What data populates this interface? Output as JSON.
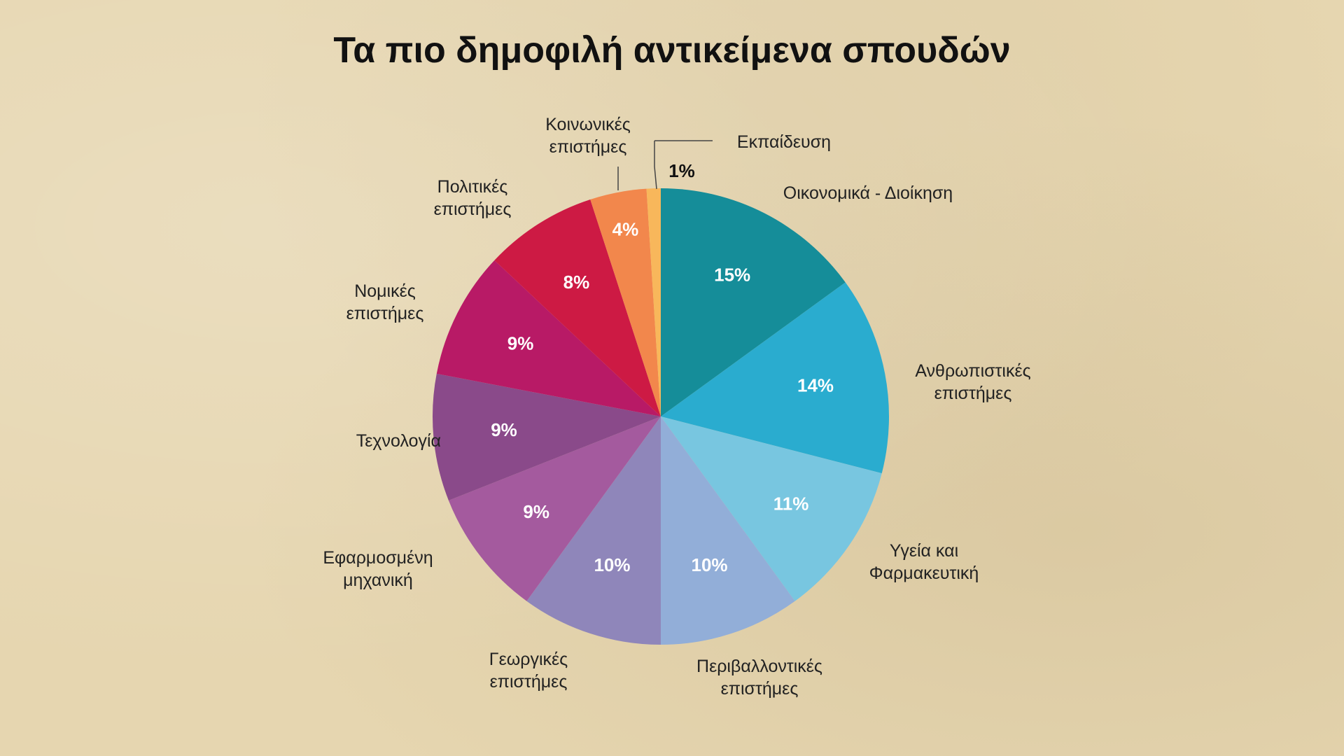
{
  "chart_data": {
    "type": "pie",
    "title": "Τα πιο δημοφιλή αντικείμενα σπουδών",
    "slices": [
      {
        "name": "Οικονομικά - Διοίκηση",
        "value": 15,
        "label": "15%",
        "color": "#158d99"
      },
      {
        "name": "Ανθρωπιστικές επιστήμες",
        "value": 14,
        "label": "14%",
        "color": "#2aaccf"
      },
      {
        "name": "Υγεία και Φαρμακευτική",
        "value": 11,
        "label": "11%",
        "color": "#78c6e0"
      },
      {
        "name": "Περιβαλλοντικές επιστήμες",
        "value": 10,
        "label": "10%",
        "color": "#92aed8"
      },
      {
        "name": "Γεωργικές επιστήμες",
        "value": 10,
        "label": "10%",
        "color": "#8f86ba"
      },
      {
        "name": "Εφαρμοσμένη μηχανική",
        "value": 9,
        "label": "9%",
        "color": "#a45a9e"
      },
      {
        "name": "Τεχνολογία",
        "value": 9,
        "label": "9%",
        "color": "#8a4a8a"
      },
      {
        "name": "Νομικές επιστήμες",
        "value": 9,
        "label": "9%",
        "color": "#b81a66"
      },
      {
        "name": "Πολιτικές επιστήμες",
        "value": 8,
        "label": "8%",
        "color": "#cd1a44"
      },
      {
        "name": "Κοινωνικές επιστήμες",
        "value": 4,
        "label": "4%",
        "color": "#f2874c"
      },
      {
        "name": "Εκπαίδευση",
        "value": 1,
        "label": "1%",
        "color": "#f8b75b"
      }
    ],
    "legend": "none",
    "grid": false
  }
}
